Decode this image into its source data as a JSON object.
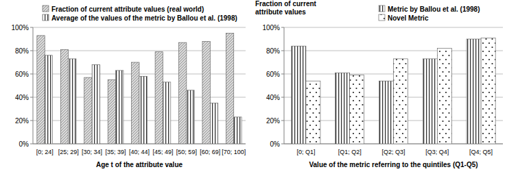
{
  "chart_data": [
    {
      "type": "bar",
      "x_label": "Age t of the attribute value",
      "categories": [
        "[0; 24]",
        "[25; 29]",
        "[30; 34]",
        "[35; 39]",
        "[40; 44]",
        "[45; 49]",
        "[50; 59]",
        "[60; 69]",
        "[70; 100]"
      ],
      "series": [
        {
          "name": "Fraction of current attribute values (real world)",
          "color": "#d9d9d9",
          "values": [
            93,
            81,
            57,
            55,
            70,
            79,
            87,
            88,
            95
          ]
        },
        {
          "name": "Average of the values of the metric by Ballou et al. (1998)",
          "color": "#ffffff",
          "values": [
            76,
            73,
            68,
            63,
            58,
            53,
            46,
            35,
            23
          ]
        }
      ],
      "ylim": [
        0,
        100
      ],
      "yticks": [
        {
          "value": 0,
          "label": "0%"
        },
        {
          "value": 20,
          "label": "20%"
        },
        {
          "value": 40,
          "label": "40%"
        },
        {
          "value": 60,
          "label": "60%"
        },
        {
          "value": 80,
          "label": "80%"
        },
        {
          "value": 100,
          "label": "100%"
        }
      ],
      "grid": true,
      "legend": "top"
    },
    {
      "type": "bar",
      "y_label": "Fraction of current attribute values",
      "x_label": "Value of the metric referring to the quintiles (Q1-Q5)",
      "categories": [
        "[0; Q1]",
        "[Q1; Q2]",
        "[Q2; Q3]",
        "[Q3; Q4]",
        "[Q4; Q5]"
      ],
      "series": [
        {
          "name": "Metric by Ballou et al. (1998)",
          "color": "#ffffff",
          "values": [
            84,
            61,
            54,
            73,
            90
          ]
        },
        {
          "name": "Novel Metric",
          "color": "#ffffff",
          "values": [
            54,
            59,
            73,
            82,
            91
          ]
        }
      ],
      "ylim": [
        0,
        100
      ],
      "yticks": [
        {
          "value": 0,
          "label": "0%"
        },
        {
          "value": 20,
          "label": "20%"
        },
        {
          "value": 40,
          "label": "40%"
        },
        {
          "value": 60,
          "label": "60%"
        },
        {
          "value": 80,
          "label": "80%"
        },
        {
          "value": 100,
          "label": "100%"
        }
      ],
      "grid": true,
      "legend": "top-right"
    }
  ]
}
